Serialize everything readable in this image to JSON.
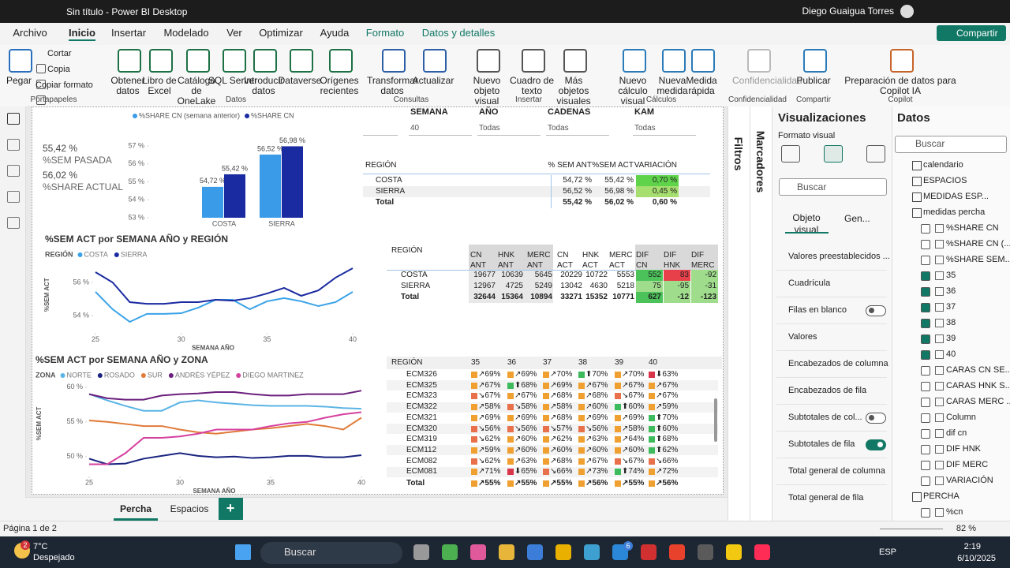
{
  "titlebar": {
    "title": "Sin título - Power BI Desktop",
    "user": "Diego Guaigua Torres"
  },
  "menu": {
    "tabs": [
      "Archivo",
      "Inicio",
      "Insertar",
      "Modelado",
      "Ver",
      "Optimizar",
      "Ayuda",
      "Formato",
      "Datos y detalles"
    ],
    "share": "Compartir"
  },
  "ribbon": {
    "groups": [
      {
        "label": "Portapapeles",
        "buttons": [
          "Pegar",
          "Cortar",
          "Copia",
          "Copiar formato"
        ]
      },
      {
        "label": "Datos",
        "buttons": [
          "Obtener datos",
          "Libro de Excel",
          "Catálogo de OneLake",
          "SQL Server",
          "Introducir datos",
          "Dataverse",
          "Orígenes recientes"
        ]
      },
      {
        "label": "Consultas",
        "buttons": [
          "Transformar datos",
          "Actualizar"
        ]
      },
      {
        "label": "Insertar",
        "buttons": [
          "Nuevo objeto visual",
          "Cuadro de texto",
          "Más objetos visuales"
        ]
      },
      {
        "label": "Cálculos",
        "buttons": [
          "Nuevo cálculo visual",
          "Nueva medida",
          "Medida rápida"
        ]
      },
      {
        "label": "Confidencialidad",
        "buttons": [
          "Confidencialidad"
        ]
      },
      {
        "label": "Compartir",
        "buttons": [
          "Publicar"
        ]
      },
      {
        "label": "Copilot",
        "buttons": [
          "Preparación de datos para Copilot IA"
        ]
      }
    ]
  },
  "cards": [
    {
      "value": "55,42 %",
      "label": "%SEM PASADA"
    },
    {
      "value": "56,02 %",
      "label": "%SHARE ACTUAL"
    }
  ],
  "slicers": [
    {
      "label": "SEMANA",
      "value": "40"
    },
    {
      "label": "AÑO",
      "value": "Todas"
    },
    {
      "label": "CADENAS",
      "value": "Todas"
    },
    {
      "label": "KAM",
      "value": "Todas"
    }
  ],
  "bar_chart": {
    "type": "bar",
    "categories": [
      "COSTA",
      "SIERRA"
    ],
    "series": [
      {
        "name": "%SHARE CN (semana anterior)",
        "color": "#3a9be8",
        "values": [
          54.72,
          56.52
        ],
        "value_labels": [
          "54,72 %",
          "56,52 %"
        ]
      },
      {
        "name": "%SHARE CN",
        "color": "#1a2aa0",
        "values": [
          55.42,
          56.98
        ],
        "value_labels": [
          "55,42 %",
          "56,98 %"
        ]
      }
    ],
    "ylim": [
      53,
      57
    ],
    "yticks": [
      {
        "value": 53,
        "label": "53 %"
      },
      {
        "value": 54,
        "label": "54 %"
      },
      {
        "value": 55,
        "label": "55 %"
      },
      {
        "value": 56,
        "label": "56 %"
      },
      {
        "value": 57,
        "label": "57 %"
      }
    ]
  },
  "line_chart_region": {
    "type": "line",
    "title": "%SEM ACT por SEMANA AÑO y REGIÓN",
    "legend_title": "REGIÓN",
    "x_label": "SEMANA AÑO",
    "y_label": "%SEM ACT",
    "x": [
      25,
      26,
      27,
      28,
      29,
      30,
      31,
      32,
      33,
      34,
      35,
      36,
      37,
      38,
      39,
      40
    ],
    "series": [
      {
        "name": "COSTA",
        "color": "#3aa3e8",
        "values": [
          55.43,
          54.38,
          53.62,
          54.1,
          54.1,
          54.14,
          54.48,
          54.95,
          54.95,
          54.38,
          54.86,
          55.05,
          54.86,
          54.57,
          54.81,
          55.43
        ]
      },
      {
        "name": "SIERRA",
        "color": "#1a2aa0",
        "values": [
          56.62,
          56.0,
          54.81,
          54.71,
          54.71,
          54.81,
          54.81,
          54.95,
          54.9,
          55.05,
          55.33,
          55.67,
          55.19,
          55.52,
          56.29,
          56.86
        ]
      }
    ],
    "xlim": [
      25,
      40
    ],
    "xticks": [
      25,
      30,
      35,
      40
    ],
    "ylim": [
      53.5,
      57
    ],
    "yticks": [
      {
        "value": 54,
        "label": "54 %"
      },
      {
        "value": 56,
        "label": "56 %"
      }
    ]
  },
  "line_chart_zone": {
    "type": "line",
    "title": "%SEM ACT por SEMANA AÑO y ZONA",
    "legend_title": "ZONA",
    "x_label": "SEMANA AÑO",
    "y_label": "%SEM ACT",
    "x": [
      25,
      26,
      27,
      28,
      29,
      30,
      31,
      32,
      33,
      34,
      35,
      36,
      37,
      38,
      39,
      40
    ],
    "series": [
      {
        "name": "NORTE",
        "color": "#5ab4e5",
        "values": [
          59.0,
          58.1,
          57.3,
          56.6,
          56.6,
          57.8,
          58.1,
          57.8,
          57.6,
          57.4,
          57.3,
          57.3,
          57.3,
          57.2,
          57.0,
          56.9
        ]
      },
      {
        "name": "ROSADO",
        "color": "#1a2480",
        "values": [
          49.7,
          48.9,
          49.0,
          49.7,
          50.1,
          50.5,
          50.1,
          49.9,
          50.0,
          49.8,
          49.9,
          50.1,
          50.1,
          49.9,
          49.9,
          50.2
        ]
      },
      {
        "name": "SUR",
        "color": "#e07b39",
        "values": [
          55.2,
          55.0,
          54.7,
          54.4,
          54.4,
          53.9,
          53.5,
          53.3,
          53.6,
          53.9,
          54.1,
          54.4,
          54.7,
          54.4,
          53.9,
          55.6
        ]
      },
      {
        "name": "ANDRÉS YÉPEZ",
        "color": "#6b1f7c",
        "values": [
          59.0,
          58.4,
          58.2,
          58.2,
          58.8,
          59.0,
          59.1,
          59.3,
          59.3,
          59.0,
          58.8,
          58.8,
          59.0,
          59.0,
          59.0,
          59.5
        ]
      },
      {
        "name": "DIEGO MARTINEZ",
        "color": "#d6409f",
        "values": [
          48.9,
          48.9,
          50.5,
          52.7,
          52.7,
          52.9,
          53.3,
          53.9,
          53.9,
          53.9,
          54.4,
          54.8,
          55.0,
          55.6,
          56.1,
          56.4
        ]
      }
    ],
    "xlim": [
      25,
      40
    ],
    "xticks": [
      25,
      30,
      35,
      40
    ],
    "ylim": [
      48.5,
      61
    ],
    "yticks": [
      {
        "value": 50,
        "label": "50 %"
      },
      {
        "value": 55,
        "label": "55 %"
      },
      {
        "value": 60,
        "label": "60 %"
      }
    ]
  },
  "table_share": {
    "headers": [
      "REGIÓN",
      "% SEM ANT",
      "%SEM ACT",
      "VARIACIÓN"
    ],
    "rows": [
      [
        "COSTA",
        "54,72 %",
        "55,42 %",
        "0,70 %"
      ],
      [
        "SIERRA",
        "56,52 %",
        "56,98 %",
        "0,45 %"
      ],
      [
        "Total",
        "55,42 %",
        "56,02 %",
        "0,60 %"
      ]
    ]
  },
  "table_counts": {
    "headers": [
      "REGIÓN",
      "CN ANT",
      "HNK ANT",
      "MERC ANT",
      "CN ACT",
      "HNK ACT",
      "MERC ACT",
      "DIF CN",
      "DIF HNK",
      "DIF MERC"
    ],
    "rows": [
      [
        "COSTA",
        "19677",
        "10639",
        "5645",
        "20229",
        "10722",
        "5553",
        "552",
        "83",
        "-92"
      ],
      [
        "SIERRA",
        "12967",
        "4725",
        "5249",
        "13042",
        "4630",
        "5218",
        "75",
        "-95",
        "-31"
      ],
      [
        "Total",
        "32644",
        "15364",
        "10894",
        "33271",
        "15352",
        "10771",
        "627",
        "-12",
        "-123"
      ]
    ]
  },
  "matrix": {
    "headers": [
      "REGIÓN",
      "35",
      "36",
      "37",
      "38",
      "39",
      "40"
    ],
    "rows": [
      [
        "ECM326",
        "↗69%",
        "↗69%",
        "↗70%",
        "⬆70%",
        "↗70%",
        "⬇63%"
      ],
      [
        "ECM325",
        "↗67%",
        "⬆68%",
        "↗69%",
        "↗67%",
        "↗67%",
        "↗67%"
      ],
      [
        "ECM323",
        "↘67%",
        "↗67%",
        "↗68%",
        "↗68%",
        "↘67%",
        "↗67%"
      ],
      [
        "ECM322",
        "↗58%",
        "↘58%",
        "↗58%",
        "↗60%",
        "⬆60%",
        "↗59%"
      ],
      [
        "ECM321",
        "↗69%",
        "↗69%",
        "↗68%",
        "↗69%",
        "↗69%",
        "⬆70%"
      ],
      [
        "ECM320",
        "↘56%",
        "↘56%",
        "↘57%",
        "↘56%",
        "↗58%",
        "⬆60%"
      ],
      [
        "ECM319",
        "↘62%",
        "↗60%",
        "↗62%",
        "↗63%",
        "↗64%",
        "⬆68%"
      ],
      [
        "ECM112",
        "↗59%",
        "↗60%",
        "↗60%",
        "↗60%",
        "↗60%",
        "⬆62%"
      ],
      [
        "ECM082",
        "↘62%",
        "↗63%",
        "↗68%",
        "↗67%",
        "↘67%",
        "↘66%"
      ],
      [
        "ECM081",
        "↗71%",
        "⬇65%",
        "↘66%",
        "↗73%",
        "⬆74%",
        "↗72%"
      ],
      [
        "Total",
        "↗55%",
        "↗55%",
        "↗55%",
        "↗56%",
        "↗55%",
        "↗56%"
      ]
    ]
  },
  "side": {
    "filters": "Filtros",
    "bookmarks": "Marcadores"
  },
  "visualizations": {
    "title": "Visualizaciones",
    "subtitle": "Formato visual",
    "search": "Buscar",
    "tabs": [
      "Objeto visual",
      "Gen..."
    ],
    "sections": [
      {
        "label": "Valores preestablecidos ..."
      },
      {
        "label": "Cuadrícula"
      },
      {
        "label": "Filas en blanco",
        "toggle": false
      },
      {
        "label": "Valores"
      },
      {
        "label": "Encabezados de columna"
      },
      {
        "label": "Encabezados de fila"
      },
      {
        "label": "Subtotales de col...",
        "toggle": false
      },
      {
        "label": "Subtotales de fila",
        "toggle": true
      },
      {
        "label": "Total general de columna"
      },
      {
        "label": "Total general de fila"
      }
    ]
  },
  "data_pane": {
    "title": "Datos",
    "search": "Buscar",
    "items": [
      {
        "name": "calendario",
        "kind": "table"
      },
      {
        "name": "ESPACIOS",
        "kind": "table"
      },
      {
        "name": "MEDIDAS ESP...",
        "kind": "table"
      },
      {
        "name": "medidas percha",
        "kind": "table"
      },
      {
        "name": "%SHARE CN",
        "kind": "field",
        "checked": false
      },
      {
        "name": "%SHARE CN (...",
        "kind": "field",
        "checked": false
      },
      {
        "name": "%SHARE SEM...",
        "kind": "field",
        "checked": false
      },
      {
        "name": "35",
        "kind": "field",
        "checked": true
      },
      {
        "name": "36",
        "kind": "field",
        "checked": true
      },
      {
        "name": "37",
        "kind": "field",
        "checked": true
      },
      {
        "name": "38",
        "kind": "field",
        "checked": true
      },
      {
        "name": "39",
        "kind": "field",
        "checked": true
      },
      {
        "name": "40",
        "kind": "field",
        "checked": true
      },
      {
        "name": "CARAS CN SE...",
        "kind": "field",
        "checked": false
      },
      {
        "name": "CARAS HNK S...",
        "kind": "field",
        "checked": false
      },
      {
        "name": "CARAS MERC ...",
        "kind": "field",
        "checked": false
      },
      {
        "name": "Column",
        "kind": "field",
        "checked": false
      },
      {
        "name": "dif cn",
        "kind": "field",
        "checked": false
      },
      {
        "name": "DIF HNK",
        "kind": "field",
        "checked": false
      },
      {
        "name": "DIF MERC",
        "kind": "field",
        "checked": false
      },
      {
        "name": "VARIACIÓN",
        "kind": "field",
        "checked": false
      },
      {
        "name": "PERCHA",
        "kind": "table"
      },
      {
        "name": "%cn",
        "kind": "field",
        "checked": false
      }
    ]
  },
  "page_tabs": {
    "tabs": [
      "Percha",
      "Espacios"
    ],
    "add": "+"
  },
  "status": {
    "page": "Página 1 de 2",
    "zoom": "82 %"
  },
  "taskbar": {
    "temperature": "7°C",
    "weather": "Despejado",
    "weather_badge": "2",
    "search": "Buscar",
    "app_badge": "6",
    "language": "ESP",
    "time": "2:19",
    "date": "6/10/2025"
  }
}
